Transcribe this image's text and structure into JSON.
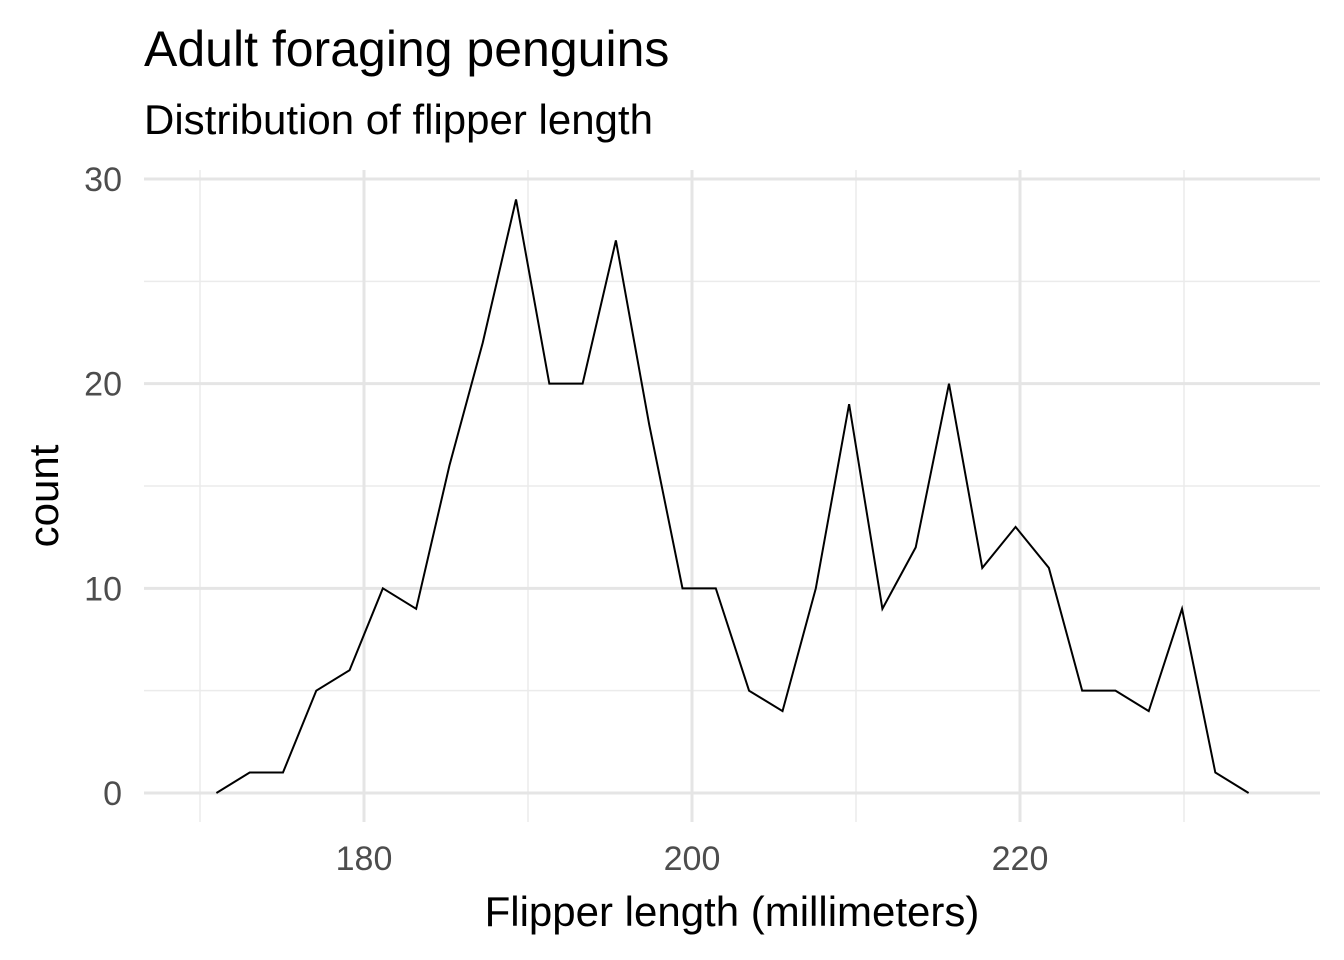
{
  "chart_data": {
    "type": "line",
    "title": "Adult foraging penguins",
    "subtitle": "Distribution of flipper length",
    "xlabel": "Flipper length (millimeters)",
    "ylabel": "count",
    "xlim": [
      167.5,
      235.5
    ],
    "ylim": [
      0,
      30
    ],
    "x_ticks": [
      180,
      200,
      220
    ],
    "y_ticks": [
      0,
      10,
      20,
      30
    ],
    "grid": true,
    "series": [
      {
        "x": [
          171,
          173.03,
          175.06,
          177.09,
          179.12,
          181.15,
          183.18,
          185.21,
          187.24,
          189.27,
          191.3,
          193.33,
          195.36,
          197.39,
          199.42,
          201.45,
          203.48,
          205.52,
          207.55,
          209.58,
          211.61,
          213.64,
          215.67,
          217.7,
          219.73,
          221.76,
          223.79,
          225.82,
          227.85,
          229.88,
          231.91,
          233.94
        ],
        "y": [
          0,
          1,
          1,
          5,
          6,
          10,
          9,
          16,
          22,
          29,
          20,
          20,
          27,
          18,
          10,
          10,
          5,
          4,
          10,
          19,
          9,
          12,
          20,
          11,
          13,
          11,
          5,
          5,
          4,
          9,
          1,
          0
        ]
      }
    ]
  }
}
